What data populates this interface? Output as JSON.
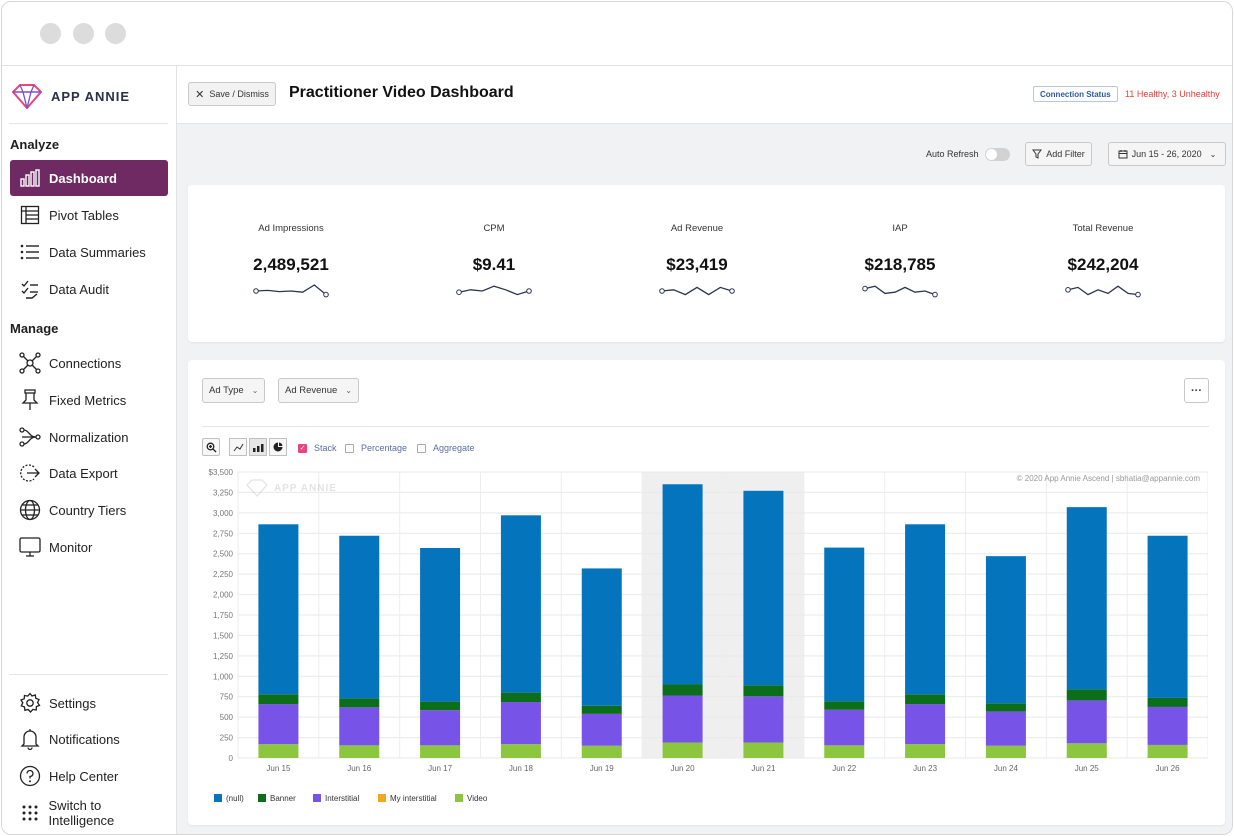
{
  "logo": {
    "text": "APP ANNIE"
  },
  "sidebar": {
    "analyze_title": "Analyze",
    "analyze_items": [
      {
        "label": "Dashboard",
        "icon": "bar-chart-icon",
        "active": true
      },
      {
        "label": "Pivot Tables",
        "icon": "table-icon"
      },
      {
        "label": "Data Summaries",
        "icon": "list-icon"
      },
      {
        "label": "Data Audit",
        "icon": "checklist-icon"
      }
    ],
    "manage_title": "Manage",
    "manage_items": [
      {
        "label": "Connections",
        "icon": "network-icon"
      },
      {
        "label": "Fixed Metrics",
        "icon": "pin-icon"
      },
      {
        "label": "Normalization",
        "icon": "flow-icon"
      },
      {
        "label": "Data Export",
        "icon": "export-icon"
      },
      {
        "label": "Country Tiers",
        "icon": "globe-icon"
      },
      {
        "label": "Monitor",
        "icon": "monitor-icon"
      }
    ],
    "footer_items": [
      {
        "label": "Settings",
        "icon": "gear-icon"
      },
      {
        "label": "Notifications",
        "icon": "bell-icon"
      },
      {
        "label": "Help Center",
        "icon": "help-icon"
      },
      {
        "label": "Switch to Intelligence",
        "icon": "grid-dots-icon"
      }
    ]
  },
  "topbar": {
    "save_label": "Save / Dismiss",
    "title": "Practitioner Video Dashboard",
    "connection_badge": "Connection Status",
    "connection_text": "11 Healthy, 3 Unhealthy"
  },
  "toolbar": {
    "auto_refresh": "Auto Refresh",
    "auto_refresh_on": false,
    "add_filter": "Add Filter",
    "date_range": "Jun 15 - 26, 2020"
  },
  "kpis": [
    {
      "label": "Ad Impressions",
      "value": "2,489,521",
      "trend": [
        0.5,
        0.55,
        0.45,
        0.5,
        0.4,
        1.0,
        0.2
      ]
    },
    {
      "label": "CPM",
      "value": "$9.41",
      "trend": [
        0.4,
        0.6,
        0.5,
        0.9,
        0.6,
        0.2,
        0.5
      ]
    },
    {
      "label": "Ad Revenue",
      "value": "$23,419",
      "trend": [
        0.5,
        0.6,
        0.2,
        0.8,
        0.2,
        0.8,
        0.5
      ]
    },
    {
      "label": "IAP",
      "value": "$218,785",
      "trend": [
        0.7,
        0.9,
        0.3,
        0.4,
        0.8,
        0.4,
        0.5,
        0.2
      ]
    },
    {
      "label": "Total Revenue",
      "value": "$242,204",
      "trend": [
        0.6,
        0.8,
        0.2,
        0.6,
        0.3,
        0.9,
        0.3,
        0.2
      ]
    }
  ],
  "chart_controls": {
    "dropdown_1": "Ad Type",
    "dropdown_2": "Ad Revenue",
    "stack_label": "Stack",
    "stack_checked": true,
    "percentage_label": "Percentage",
    "aggregate_label": "Aggregate",
    "copyright": "© 2020 App Annie Ascend | sbhatia@appannie.com"
  },
  "colors": {
    "null": "#0475bd",
    "Banner": "#0c6e1a",
    "Interstitial": "#7853e8",
    "My interstitial": "#f2a71f",
    "Video": "#8cc63f",
    "accent": "#6f2a63"
  },
  "chart_data": {
    "type": "bar",
    "stacked": true,
    "categories": [
      "Jun 15",
      "Jun 16",
      "Jun 17",
      "Jun 18",
      "Jun 19",
      "Jun 20",
      "Jun 21",
      "Jun 22",
      "Jun 23",
      "Jun 24",
      "Jun 25",
      "Jun 26"
    ],
    "series": [
      {
        "name": "Video",
        "values": [
          170,
          155,
          155,
          170,
          150,
          190,
          190,
          155,
          170,
          150,
          180,
          160
        ]
      },
      {
        "name": "My interstitial",
        "values": [
          0,
          0,
          0,
          0,
          0,
          0,
          0,
          0,
          0,
          0,
          0,
          0
        ]
      },
      {
        "name": "Interstitial",
        "values": [
          490,
          465,
          430,
          515,
          390,
          575,
          565,
          435,
          490,
          420,
          525,
          465
        ]
      },
      {
        "name": "Banner",
        "values": [
          120,
          110,
          105,
          115,
          100,
          135,
          135,
          105,
          120,
          100,
          135,
          110
        ]
      },
      {
        "name": "(null)",
        "values": [
          2080,
          1990,
          1880,
          2170,
          1680,
          2450,
          2380,
          1880,
          2080,
          1800,
          2230,
          1985
        ]
      }
    ],
    "legend_order": [
      "(null)",
      "Banner",
      "Interstitial",
      "My interstitial",
      "Video"
    ],
    "ylim": [
      0,
      3500
    ],
    "yticks": [
      "0",
      "250",
      "500",
      "750",
      "1,000",
      "1,250",
      "1,500",
      "1,750",
      "2,000",
      "2,250",
      "2,500",
      "2,750",
      "3,000",
      "3,250",
      "$3,500"
    ],
    "highlight_categories": [
      "Jun 20",
      "Jun 21"
    ],
    "watermark": "APP ANNIE",
    "grid": true,
    "legend_position": "bottom-left"
  }
}
